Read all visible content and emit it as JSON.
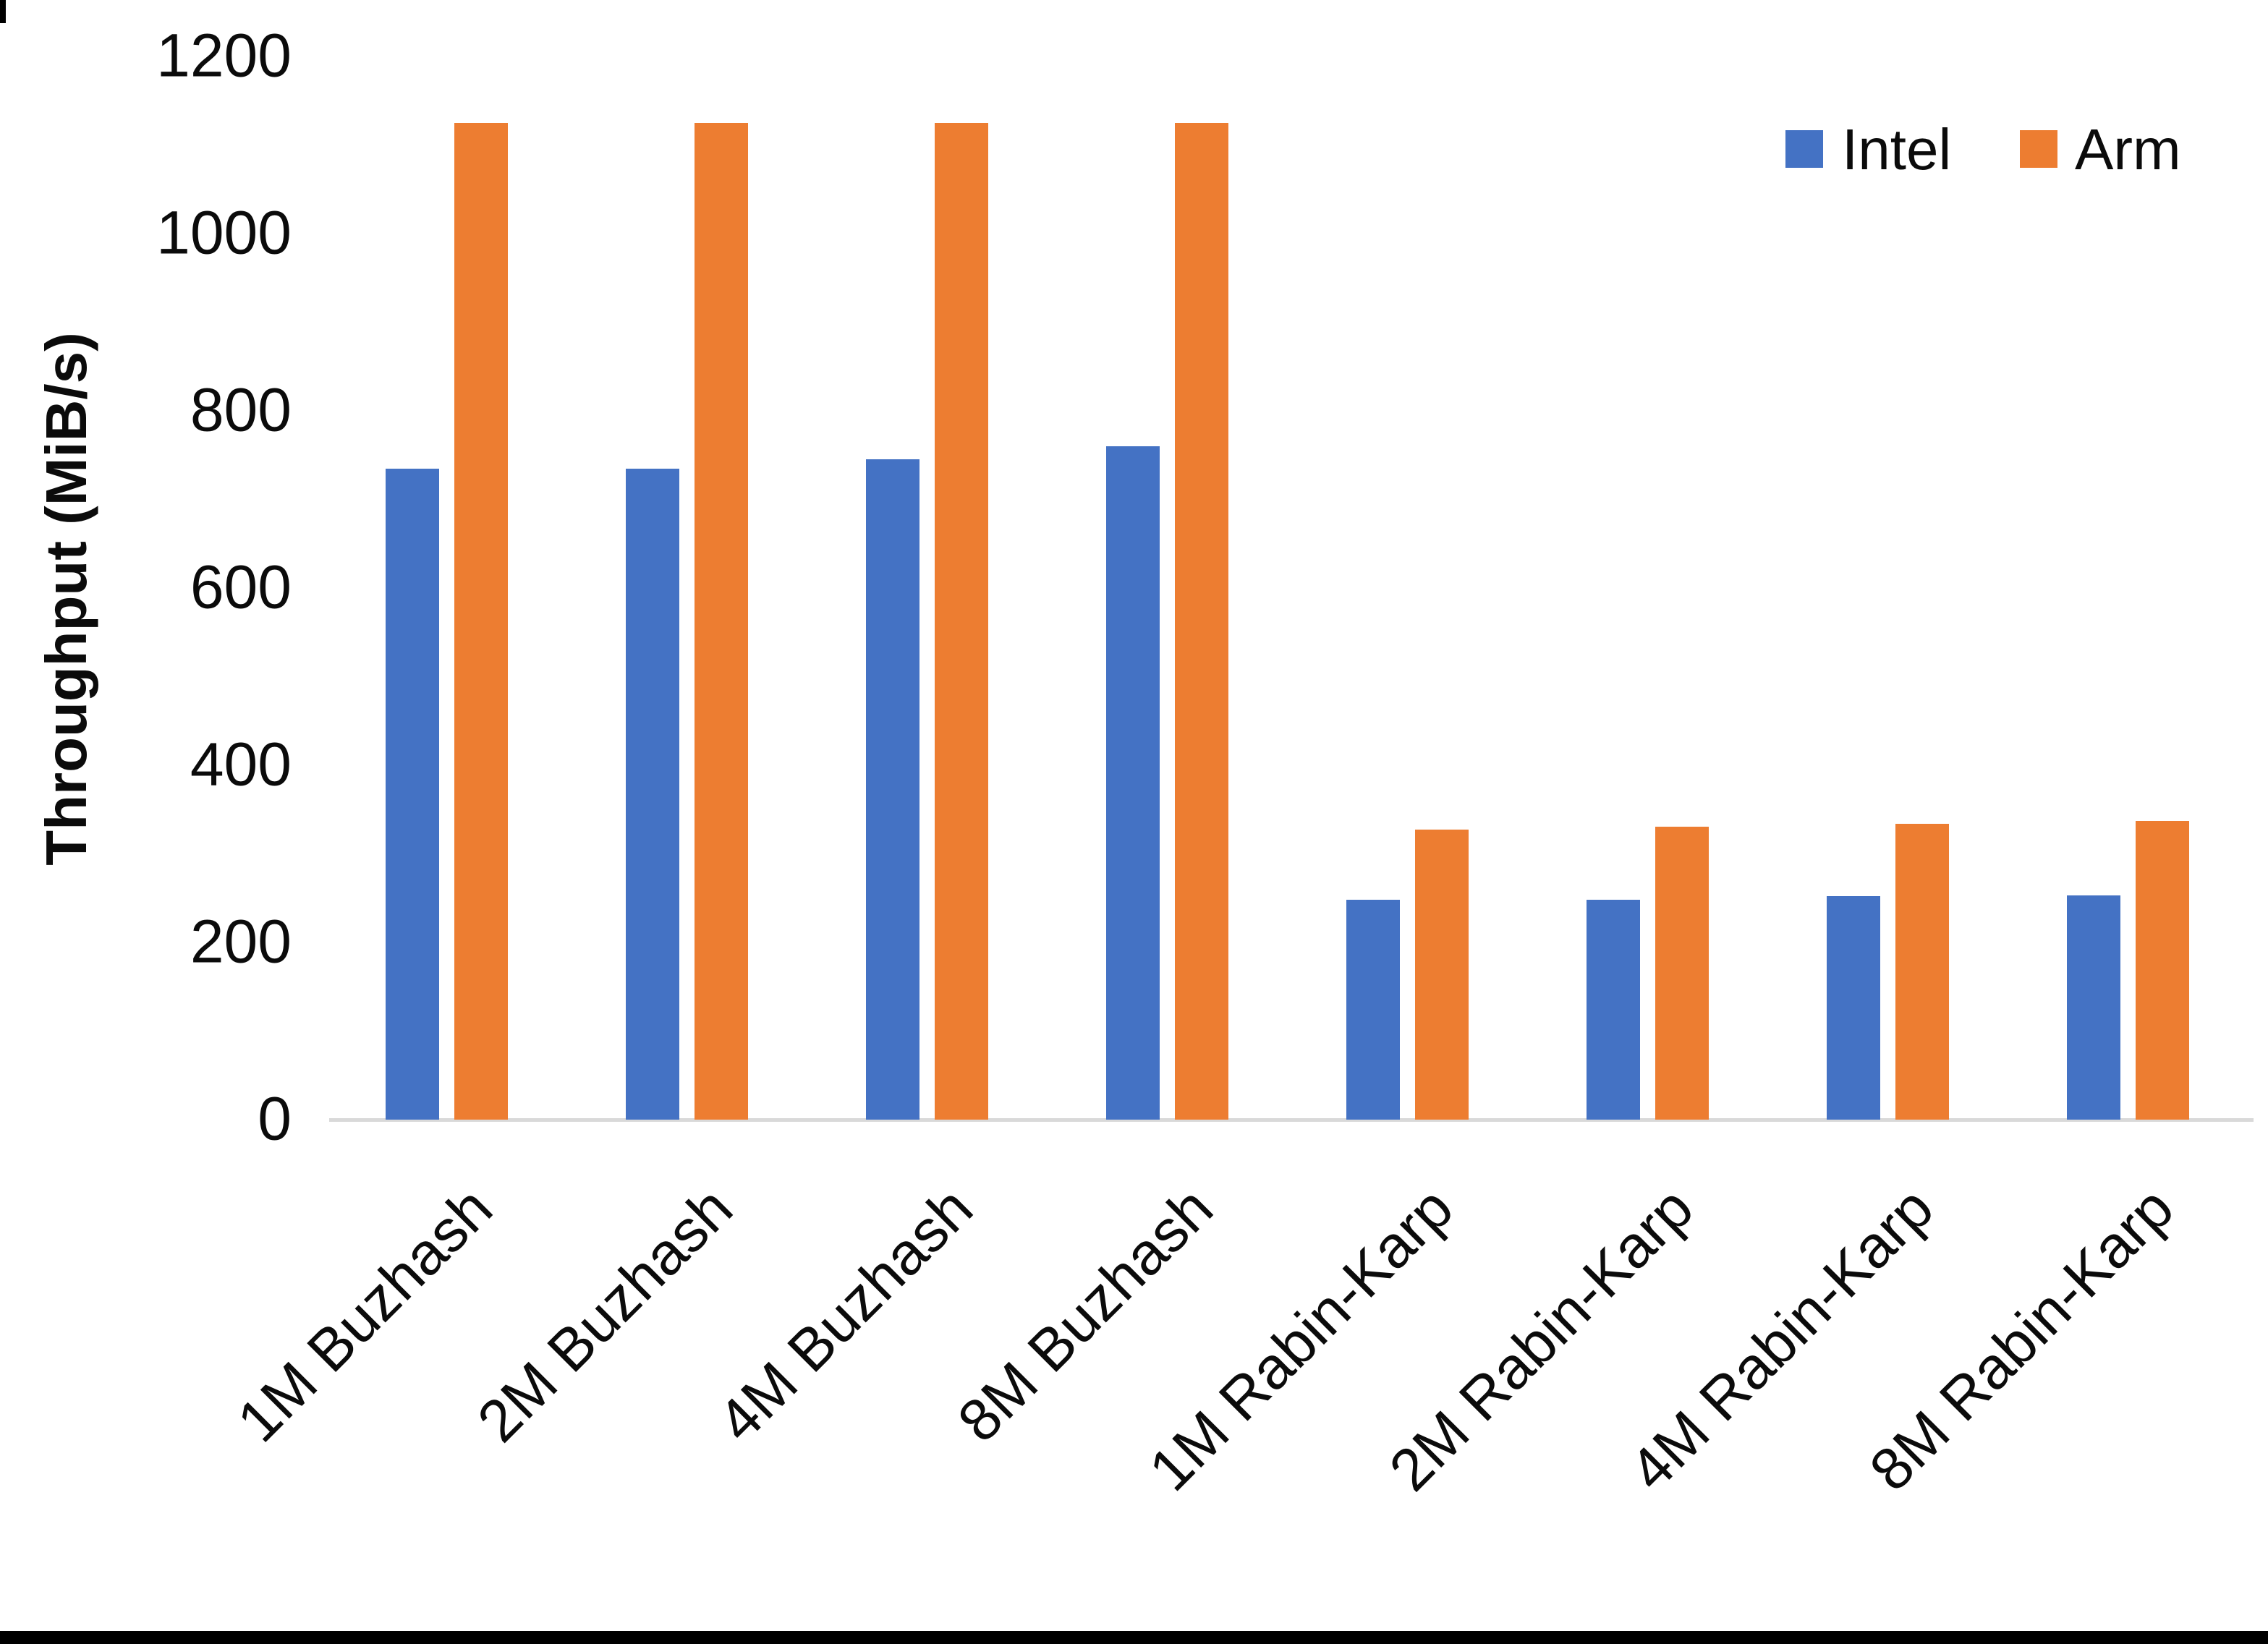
{
  "chart_data": {
    "type": "bar",
    "title": "",
    "xlabel": "",
    "ylabel": "Throughput (MiB/s)",
    "ylim": [
      0,
      1200
    ],
    "yticks": [
      0,
      200,
      400,
      600,
      800,
      1000,
      1200
    ],
    "grid": false,
    "legend_position": "top-right",
    "categories": [
      "1M Buzhash",
      "2M Buzhash",
      "4M Buzhash",
      "8M Buzhash",
      "1M Rabin-Karp",
      "2M Rabin-Karp",
      "4M Rabin-Karp",
      "8M Rabin-Karp"
    ],
    "series": [
      {
        "name": "Intel",
        "color": "#4472C4",
        "values": [
          735,
          735,
          745,
          760,
          248,
          248,
          252,
          253
        ]
      },
      {
        "name": "Arm",
        "color": "#ED7D31",
        "values": [
          1125,
          1125,
          1125,
          1125,
          327,
          331,
          334,
          337
        ]
      }
    ]
  },
  "colors": {
    "axis_line": "#d9d9d9",
    "text": "#0b0b0b",
    "frame_bottom": "#000000"
  }
}
